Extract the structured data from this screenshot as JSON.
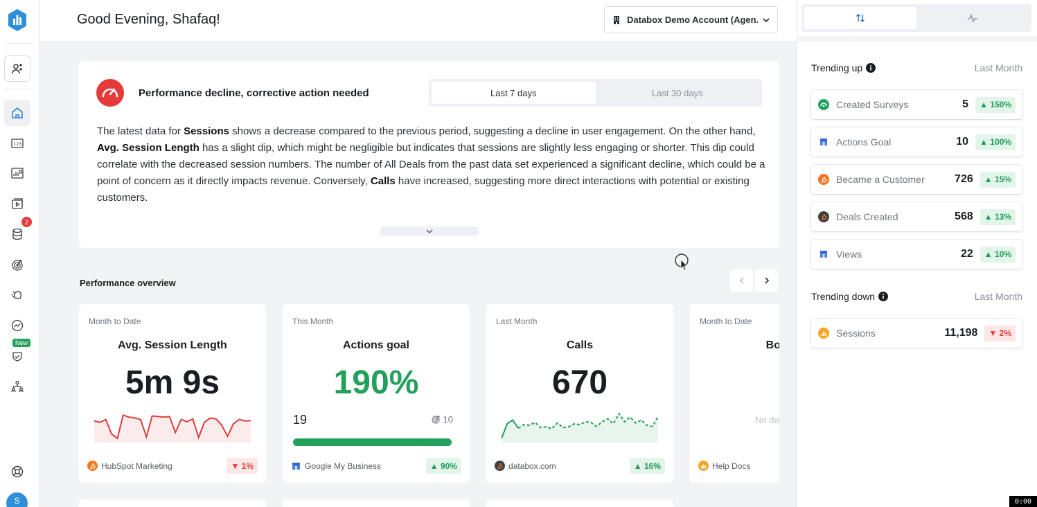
{
  "header": {
    "greeting": "Good Evening, Shafaq!",
    "account_selector": "Databox Demo Account (Agen..."
  },
  "sidebar": {
    "items": [
      {
        "icon": "user-switch-icon"
      },
      {
        "icon": "home-icon",
        "active": true
      },
      {
        "icon": "metrics-icon"
      },
      {
        "icon": "dashboards-icon"
      },
      {
        "icon": "reports-icon"
      },
      {
        "icon": "datasources-icon",
        "badge": "2"
      },
      {
        "icon": "goals-icon"
      },
      {
        "icon": "alerts-icon"
      },
      {
        "icon": "analytics-icon"
      },
      {
        "icon": "benchmarks-icon",
        "badge": "New"
      },
      {
        "icon": "team-icon"
      },
      {
        "icon": "help-icon"
      }
    ],
    "avatar_initial": "S"
  },
  "insight": {
    "title": "Performance decline, corrective action needed",
    "range_options": [
      "Last 7 days",
      "Last 30 days"
    ],
    "selected_range": "Last 7 days",
    "segments": [
      {
        "t": "The latest data for "
      },
      {
        "t": "Sessions",
        "b": true
      },
      {
        "t": " shows a decrease compared to the previous period, suggesting a decline in user engagement. On the other hand, "
      },
      {
        "t": "Avg. Session Length",
        "b": true
      },
      {
        "t": " has a slight dip, which might be negligible but indicates that sessions are slightly less engaging or shorter. This dip could correlate with the decreased session numbers. The number of All Deals from the past data set experienced a significant decline, which could be a point of concern as it directly impacts revenue. Conversely, "
      },
      {
        "t": "Calls",
        "b": true
      },
      {
        "t": " have increased, suggesting more direct interactions with potential or existing customers."
      }
    ]
  },
  "performance": {
    "title": "Performance overview",
    "cards": [
      {
        "period": "Month to Date",
        "name": "Avg. Session Length",
        "value": "5m 9s",
        "source": "HubSpot Marketing",
        "source_icon": "hubspot-icon",
        "change": "1%",
        "direction": "down",
        "spark": [
          0.65,
          0.6,
          0.7,
          0.2,
          0.05,
          0.85,
          0.78,
          0.75,
          0.7,
          0.1,
          0.82,
          0.8,
          0.78,
          0.8,
          0.25,
          0.7,
          0.62,
          0.72,
          0.08,
          0.6,
          0.75,
          0.72,
          0.5,
          0.12,
          0.55,
          0.7,
          0.65,
          0.66
        ]
      },
      {
        "period": "This Month",
        "name": "Actions goal",
        "value": "190%",
        "current": "19",
        "goal": "10",
        "goal_progress": 1.0,
        "source": "Google My Business",
        "source_icon": "google-my-business-icon",
        "change": "90%",
        "direction": "up"
      },
      {
        "period": "Last Month",
        "name": "Calls",
        "value": "670",
        "source": "databox.com",
        "source_icon": "databox-icon",
        "change": "16%",
        "direction": "up",
        "spark": [
          0.05,
          0.55,
          0.68,
          0.4,
          0.52,
          0.5,
          0.6,
          0.42,
          0.45,
          0.38,
          0.58,
          0.42,
          0.45,
          0.55,
          0.52,
          0.62,
          0.6,
          0.46,
          0.62,
          0.72,
          0.55,
          0.9,
          0.62,
          0.78,
          0.58,
          0.68,
          0.5,
          0.46,
          0.8
        ]
      },
      {
        "period": "Month to Date",
        "name": "Bound",
        "nodata": "No data for thi",
        "source": "Help Docs",
        "source_icon": "helpdocs-icon"
      }
    ]
  },
  "trending": {
    "up_title": "Trending up",
    "up_period": "Last Month",
    "up": [
      {
        "label": "Created Surveys",
        "value": "5",
        "change": "150%",
        "icon": "surveys-icon"
      },
      {
        "label": "Actions Goal",
        "value": "10",
        "change": "100%",
        "icon": "google-my-business-icon"
      },
      {
        "label": "Became a Customer",
        "value": "726",
        "change": "15%",
        "icon": "hubspot-icon"
      },
      {
        "label": "Deals Created",
        "value": "568",
        "change": "13%",
        "icon": "hubspot-dark-icon"
      },
      {
        "label": "Views",
        "value": "22",
        "change": "10%",
        "icon": "google-my-business-icon"
      }
    ],
    "down_title": "Trending down",
    "down_period": "Last Month",
    "down": [
      {
        "label": "Sessions",
        "value": "11,198",
        "change": "2%",
        "icon": "analytics-orange-icon"
      }
    ]
  },
  "colors": {
    "accent": "#2b7bd6",
    "up": "#1f9d55",
    "down": "#e03c3c",
    "warning_red": "#e5393a"
  },
  "recorder": {
    "time": "0:00"
  }
}
